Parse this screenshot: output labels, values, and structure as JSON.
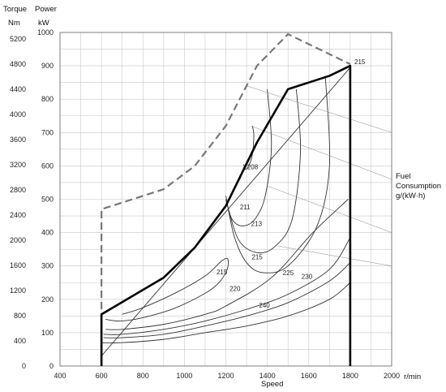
{
  "chart_data": {
    "type": "line",
    "title": "",
    "xlabel": "Speed",
    "x_unit": "r/min",
    "y_left_label": "Torque",
    "y_left_unit": "Nm",
    "y_right_label": "Power",
    "y_right_unit": "kW",
    "x_ticks": [
      400,
      600,
      800,
      1000,
      1200,
      1400,
      1600,
      1800,
      2000
    ],
    "torque_ticks": [
      0,
      400,
      800,
      1200,
      1600,
      2000,
      2400,
      2800,
      3200,
      3600,
      4000,
      4400,
      4800,
      5200
    ],
    "power_ticks": [
      0,
      100,
      200,
      300,
      400,
      500,
      600,
      700,
      800,
      900,
      1000
    ],
    "xlim": [
      400,
      2000
    ],
    "ylim_power": [
      0,
      1000
    ],
    "ylim_torque": [
      0,
      5300
    ],
    "grid": true,
    "series": [
      {
        "style": "dashed",
        "x": [
          600,
          600,
          900,
          1050,
          1200,
          1350,
          1500,
          1800
        ],
        "y": [
          0,
          470,
          530,
          600,
          720,
          900,
          995,
          905
        ]
      },
      {
        "style": "bold",
        "x": [
          600,
          600,
          900,
          1050,
          1200,
          1350,
          1500,
          1700,
          1800,
          1800
        ],
        "y": [
          0,
          155,
          265,
          355,
          480,
          670,
          830,
          870,
          900,
          0
        ]
      }
    ],
    "contours": [
      {
        "label": "208",
        "x": [
          1285,
          1298,
          1325,
          1335,
          1328
        ],
        "y": [
          605,
          590,
          625,
          690,
          720
        ]
      },
      {
        "label": "211",
        "x": [
          1200,
          1230,
          1280,
          1340,
          1390,
          1420,
          1400
        ],
        "y": [
          500,
          440,
          420,
          440,
          510,
          660,
          830
        ]
      },
      {
        "label": "213",
        "x": [
          1200,
          1260,
          1350,
          1440,
          1520,
          1560,
          1540
        ],
        "y": [
          500,
          380,
          340,
          360,
          440,
          640,
          830
        ]
      },
      {
        "label": "215",
        "x": [
          1200,
          1240,
          1300,
          1380,
          1500,
          1640,
          1700,
          1680
        ],
        "y": [
          510,
          390,
          310,
          280,
          300,
          420,
          600,
          870
        ]
      },
      {
        "label": "215",
        "x": [
          620,
          690,
          800,
          960,
          1130,
          1200,
          1210,
          1180,
          1100,
          960,
          800,
          700
        ],
        "y": [
          140,
          135,
          145,
          175,
          230,
          280,
          320,
          315,
          270,
          220,
          175,
          155
        ]
      },
      {
        "label": "220",
        "x": [
          620,
          700,
          900,
          1100,
          1200,
          1420,
          1620,
          1790
        ],
        "y": [
          110,
          110,
          125,
          155,
          180,
          265,
          400,
          500
        ]
      },
      {
        "label": "225",
        "x": [
          610,
          700,
          900,
          1100,
          1300,
          1500,
          1700,
          1800
        ],
        "y": [
          95,
          95,
          110,
          135,
          170,
          215,
          290,
          385
        ]
      },
      {
        "label": "230",
        "x": [
          610,
          700,
          900,
          1100,
          1300,
          1500,
          1700,
          1800
        ],
        "y": [
          85,
          85,
          95,
          120,
          150,
          190,
          255,
          310
        ]
      },
      {
        "label": "240",
        "x": [
          600,
          700,
          900,
          1100,
          1300,
          1500,
          1700,
          1800
        ],
        "y": [
          70,
          70,
          80,
          100,
          120,
          150,
          200,
          250
        ]
      },
      {
        "label": "",
        "x": [
          600,
          1800
        ],
        "y": [
          30,
          895
        ]
      }
    ],
    "top_right_label": "215",
    "fuel_consumption_label": [
      "Fuel",
      "Consumption",
      "g/(kW·h)"
    ]
  }
}
